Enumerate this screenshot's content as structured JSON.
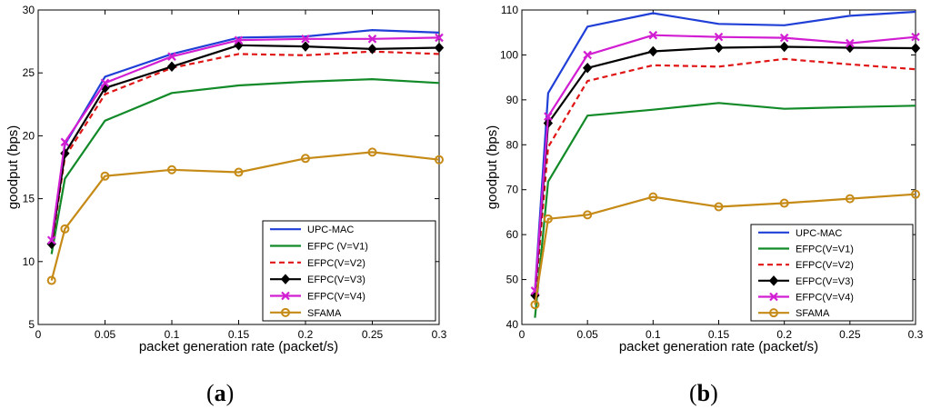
{
  "chart_data": [
    {
      "type": "line",
      "panel_label": "a",
      "xlabel": "packet generation rate (packet/s)",
      "ylabel": "goodput (bps)",
      "xlim": [
        0,
        0.3
      ],
      "ylim": [
        5,
        30
      ],
      "xticks": [
        0,
        0.05,
        0.1,
        0.15,
        0.2,
        0.25,
        0.3
      ],
      "xtick_labels": [
        "0",
        "0.05",
        "0.1",
        "0.15",
        "0.2",
        "0.25",
        "0.3"
      ],
      "yticks": [
        5,
        10,
        15,
        20,
        25,
        30
      ],
      "ytick_labels": [
        "5",
        "10",
        "15",
        "20",
        "25",
        "30"
      ],
      "legend_position": "bottom-right",
      "x": [
        0.01,
        0.02,
        0.05,
        0.1,
        0.15,
        0.2,
        0.25,
        0.3
      ],
      "series": [
        {
          "name": "UPC-MAC",
          "color": "#1f3fd6",
          "dash": "solid",
          "marker": "none",
          "values": [
            11.6,
            19.3,
            24.7,
            26.5,
            27.8,
            27.9,
            28.4,
            28.2
          ]
        },
        {
          "name": "EFPC (V=V1)",
          "color": "#128a28",
          "dash": "solid",
          "marker": "none",
          "values": [
            10.6,
            16.6,
            21.2,
            23.4,
            24.0,
            24.3,
            24.5,
            24.2
          ]
        },
        {
          "name": "EFPC(V=V2)",
          "color": "#e01515",
          "dash": "dashed",
          "marker": "none",
          "values": [
            11.2,
            18.3,
            23.3,
            25.4,
            26.5,
            26.4,
            26.7,
            26.5
          ]
        },
        {
          "name": "EFPC(V=V3)",
          "color": "#000000",
          "dash": "solid",
          "marker": "diamond",
          "values": [
            11.4,
            18.6,
            23.8,
            25.5,
            27.2,
            27.1,
            26.9,
            27.0
          ]
        },
        {
          "name": "EFPC(V=V4)",
          "color": "#d21ed2",
          "dash": "solid",
          "marker": "x",
          "values": [
            11.7,
            19.5,
            24.2,
            26.3,
            27.6,
            27.7,
            27.7,
            27.8
          ]
        },
        {
          "name": "SFAMA",
          "color": "#c68a16",
          "dash": "solid",
          "marker": "circle",
          "values": [
            8.5,
            12.6,
            16.8,
            17.3,
            17.1,
            18.2,
            18.7,
            18.1
          ]
        }
      ]
    },
    {
      "type": "line",
      "panel_label": "b",
      "xlabel": "packet generation rate (packet/s)",
      "ylabel": "goodput (bps)",
      "xlim": [
        0,
        0.3
      ],
      "ylim": [
        40,
        110
      ],
      "xticks": [
        0,
        0.05,
        0.1,
        0.15,
        0.2,
        0.25,
        0.3
      ],
      "xtick_labels": [
        "0",
        "0.05",
        "0.1",
        "0.15",
        "0.2",
        "0.25",
        "0.3"
      ],
      "yticks": [
        40,
        50,
        60,
        70,
        80,
        90,
        100,
        110
      ],
      "ytick_labels": [
        "40",
        "50",
        "60",
        "70",
        "80",
        "90",
        "100",
        "110"
      ],
      "legend_position": "bottom-right",
      "x": [
        0.01,
        0.02,
        0.05,
        0.1,
        0.15,
        0.2,
        0.25,
        0.3
      ],
      "series": [
        {
          "name": "UPC-MAC",
          "color": "#1f3fd6",
          "dash": "solid",
          "marker": "none",
          "values": [
            47.5,
            91.5,
            106.3,
            109.3,
            106.9,
            106.6,
            108.7,
            109.6
          ]
        },
        {
          "name": "EFPC(V=V1)",
          "color": "#128a28",
          "dash": "solid",
          "marker": "none",
          "values": [
            41.5,
            71.8,
            86.5,
            87.8,
            89.3,
            88.0,
            88.4,
            88.7
          ]
        },
        {
          "name": "EFPC(V=V2)",
          "color": "#e01515",
          "dash": "dashed",
          "marker": "none",
          "values": [
            45.5,
            79.5,
            94.2,
            97.7,
            97.4,
            99.1,
            97.9,
            96.8
          ]
        },
        {
          "name": "EFPC(V=V3)",
          "color": "#000000",
          "dash": "solid",
          "marker": "diamond",
          "values": [
            46.5,
            84.8,
            97.1,
            100.8,
            101.6,
            101.8,
            101.6,
            101.5
          ]
        },
        {
          "name": "EFPC(V=V4)",
          "color": "#d21ed2",
          "dash": "solid",
          "marker": "x",
          "values": [
            47.5,
            86.3,
            100.0,
            104.4,
            104.0,
            103.8,
            102.6,
            104.0
          ]
        },
        {
          "name": "SFAMA",
          "color": "#c68a16",
          "dash": "solid",
          "marker": "circle",
          "values": [
            44.4,
            63.5,
            64.4,
            68.4,
            66.2,
            67.0,
            68.0,
            69.0
          ]
        }
      ]
    }
  ]
}
